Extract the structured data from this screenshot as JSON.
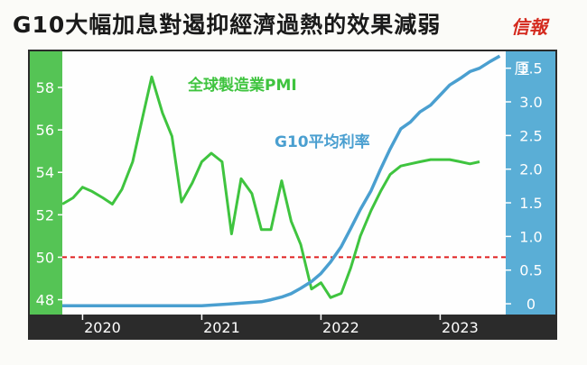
{
  "title": "G10大幅加息對遏抑經濟過熱的效果減弱",
  "brand": "信報",
  "colors": {
    "pmi": "#3fc43f",
    "rate": "#4a9fd0",
    "reference_line": "#e02020",
    "left_axis_bg": "#55c455",
    "right_axis_bg": "#5aaed6",
    "bottom_axis_bg": "#2b2b2b"
  },
  "chart_data": {
    "type": "line",
    "x_tick_labels": [
      "2020",
      "2021",
      "2022",
      "2023"
    ],
    "x_tick_values": [
      2020.0,
      2021.0,
      2022.0,
      2023.0
    ],
    "xlim": [
      2019.83,
      2023.55
    ],
    "left_axis": {
      "ticks": [
        "48",
        "50",
        "52",
        "54",
        "56",
        "58"
      ],
      "ylim": [
        47.3,
        59.7
      ]
    },
    "right_axis": {
      "unit": "厘",
      "ticks": [
        "0",
        "0.5",
        "1.0",
        "1.5",
        "2.0",
        "2.5",
        "3.0",
        "3.5"
      ],
      "ylim": [
        -0.16,
        3.75
      ]
    },
    "reference_line": {
      "axis": "left",
      "value": 50
    },
    "series": [
      {
        "name": "全球製造業PMI",
        "axis": "left",
        "x": [
          2019.83,
          2019.92,
          2020.0,
          2020.08,
          2020.17,
          2020.25,
          2020.33,
          2020.42,
          2020.5,
          2020.58,
          2020.67,
          2020.75,
          2020.83,
          2020.92,
          2021.0,
          2021.08,
          2021.17,
          2021.25,
          2021.33,
          2021.42,
          2021.5,
          2021.58,
          2021.67,
          2021.75,
          2021.83,
          2021.92,
          2022.0,
          2022.08,
          2022.17,
          2022.25,
          2022.33,
          2022.42,
          2022.5,
          2022.58,
          2022.67,
          2022.75,
          2022.83,
          2022.92,
          2023.0,
          2023.08,
          2023.17,
          2023.25,
          2023.33
        ],
        "values": [
          52.5,
          52.8,
          53.3,
          53.1,
          52.8,
          52.5,
          53.2,
          54.5,
          56.5,
          58.5,
          56.8,
          55.7,
          52.6,
          53.5,
          54.5,
          54.9,
          54.5,
          51.1,
          53.7,
          53.0,
          51.3,
          51.3,
          53.6,
          51.7,
          50.6,
          48.5,
          48.8,
          48.1,
          48.3,
          49.5,
          51.0,
          52.2,
          53.1,
          53.9,
          54.3,
          54.4,
          54.5,
          54.6,
          54.6,
          54.6,
          54.5,
          54.4,
          54.5
        ]
      },
      {
        "name": "G10平均利率",
        "axis": "right",
        "x": [
          2019.83,
          2020.0,
          2020.25,
          2020.5,
          2020.75,
          2021.0,
          2021.25,
          2021.5,
          2021.58,
          2021.67,
          2021.75,
          2021.83,
          2021.92,
          2022.0,
          2022.08,
          2022.17,
          2022.25,
          2022.33,
          2022.42,
          2022.5,
          2022.58,
          2022.67,
          2022.75,
          2022.83,
          2022.92,
          2023.0,
          2023.08,
          2023.17,
          2023.25,
          2023.33,
          2023.42,
          2023.5
        ],
        "values": [
          -0.03,
          -0.03,
          -0.03,
          -0.03,
          -0.03,
          -0.03,
          0.0,
          0.03,
          0.06,
          0.1,
          0.15,
          0.23,
          0.33,
          0.45,
          0.62,
          0.85,
          1.12,
          1.4,
          1.68,
          2.0,
          2.3,
          2.6,
          2.7,
          2.85,
          2.95,
          3.1,
          3.25,
          3.35,
          3.45,
          3.5,
          3.6,
          3.68
        ]
      }
    ],
    "annotations": [
      {
        "text": "全球製造業PMI",
        "series": "全球製造業PMI"
      },
      {
        "text": "G10平均利率",
        "series": "G10平均利率"
      }
    ]
  }
}
